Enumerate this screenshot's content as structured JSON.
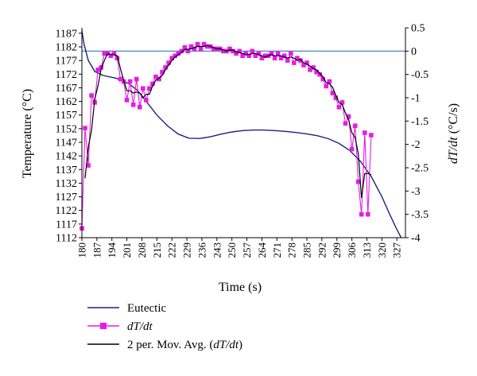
{
  "chart_data": {
    "type": "line",
    "xlabel": "Time (s)",
    "ylabel_left": "Temperature (°C)",
    "ylabel_right": "dT/dt (°C/s)",
    "xlim": [
      180,
      331
    ],
    "ylim_left": [
      1112,
      1189
    ],
    "ylim_right": [
      -4,
      0.5
    ],
    "x_ticks": [
      "180",
      "187",
      "194",
      "201",
      "208",
      "215",
      "222",
      "229",
      "236",
      "243",
      "250",
      "257",
      "264",
      "271",
      "278",
      "285",
      "292",
      "299",
      "306",
      "313",
      "320",
      "327"
    ],
    "y_ticks_left": [
      "1112",
      "1117",
      "1122",
      "1127",
      "1132",
      "1137",
      "1142",
      "1147",
      "1152",
      "1157",
      "1162",
      "1167",
      "1172",
      "1177",
      "1182",
      "1187"
    ],
    "y_ticks_right": [
      "-4",
      "-3.5",
      "-3",
      "-2.5",
      "-2",
      "-1.5",
      "-1",
      "-0.5",
      "0",
      "0.5"
    ],
    "reference_line": {
      "axis": "right",
      "value": 0,
      "color": "#5b8fd1"
    },
    "grid": false,
    "legend_position": "bottom-left",
    "legend": [
      {
        "id": "eutectic",
        "label_plain": "Eutectic"
      },
      {
        "id": "dtdt",
        "label_italic": "dT/dt"
      },
      {
        "id": "movavg",
        "label_prefix": "2 per. Mov. Avg. (",
        "label_italic": "dT/dt",
        "label_suffix": ")"
      }
    ],
    "series": [
      {
        "id": "eutectic",
        "axis": "left",
        "color": "#1a237e",
        "marker": "none",
        "points": [
          [
            180,
            1188
          ],
          [
            181,
            1183
          ],
          [
            183,
            1177
          ],
          [
            186,
            1173
          ],
          [
            190,
            1171.5
          ],
          [
            196,
            1170.5
          ],
          [
            202,
            1168.5
          ],
          [
            206,
            1166
          ],
          [
            210,
            1162
          ],
          [
            215,
            1157
          ],
          [
            220,
            1153
          ],
          [
            225,
            1150
          ],
          [
            230,
            1148.5
          ],
          [
            235,
            1148.4
          ],
          [
            240,
            1149
          ],
          [
            245,
            1150
          ],
          [
            250,
            1150.8
          ],
          [
            255,
            1151.3
          ],
          [
            260,
            1151.5
          ],
          [
            265,
            1151.5
          ],
          [
            270,
            1151.3
          ],
          [
            275,
            1151
          ],
          [
            280,
            1150.6
          ],
          [
            285,
            1150.1
          ],
          [
            290,
            1149.4
          ],
          [
            295,
            1148.3
          ],
          [
            300,
            1146.6
          ],
          [
            305,
            1144
          ],
          [
            310,
            1140
          ],
          [
            315,
            1134.5
          ],
          [
            320,
            1127
          ],
          [
            324,
            1120
          ],
          [
            327,
            1115
          ],
          [
            329,
            1112
          ]
        ]
      },
      {
        "id": "dtdt",
        "axis": "right",
        "color": "#e61ce6",
        "marker": "square",
        "x_start": 180,
        "x_step": 1.5,
        "values": [
          -3.8,
          -1.65,
          -2.45,
          -0.95,
          -1.1,
          -0.4,
          -0.35,
          -0.05,
          -0.05,
          -0.1,
          -0.05,
          -0.15,
          -0.6,
          -0.65,
          -1.05,
          -0.65,
          -1.15,
          -0.6,
          -1.2,
          -0.8,
          -1.05,
          -0.8,
          -0.7,
          -0.55,
          -0.6,
          -0.45,
          -0.35,
          -0.25,
          -0.15,
          -0.1,
          -0.05,
          0.0,
          0.08,
          0.0,
          0.1,
          0.05,
          0.15,
          0.05,
          0.15,
          0.1,
          0.1,
          0.05,
          0.05,
          0.05,
          0.0,
          0.0,
          0.05,
          0.0,
          -0.05,
          0.0,
          -0.1,
          -0.05,
          -0.1,
          0.0,
          -0.1,
          -0.05,
          -0.15,
          -0.1,
          -0.1,
          -0.05,
          -0.15,
          -0.05,
          -0.15,
          -0.1,
          -0.2,
          -0.05,
          -0.25,
          -0.15,
          -0.2,
          -0.3,
          -0.25,
          -0.4,
          -0.35,
          -0.45,
          -0.5,
          -0.6,
          -0.75,
          -0.65,
          -0.9,
          -1.0,
          -1.2,
          -1.1,
          -1.55,
          -1.4,
          -2.1,
          -1.6,
          -2.8,
          -3.5,
          -1.75,
          -3.5,
          -1.8
        ]
      }
    ]
  }
}
